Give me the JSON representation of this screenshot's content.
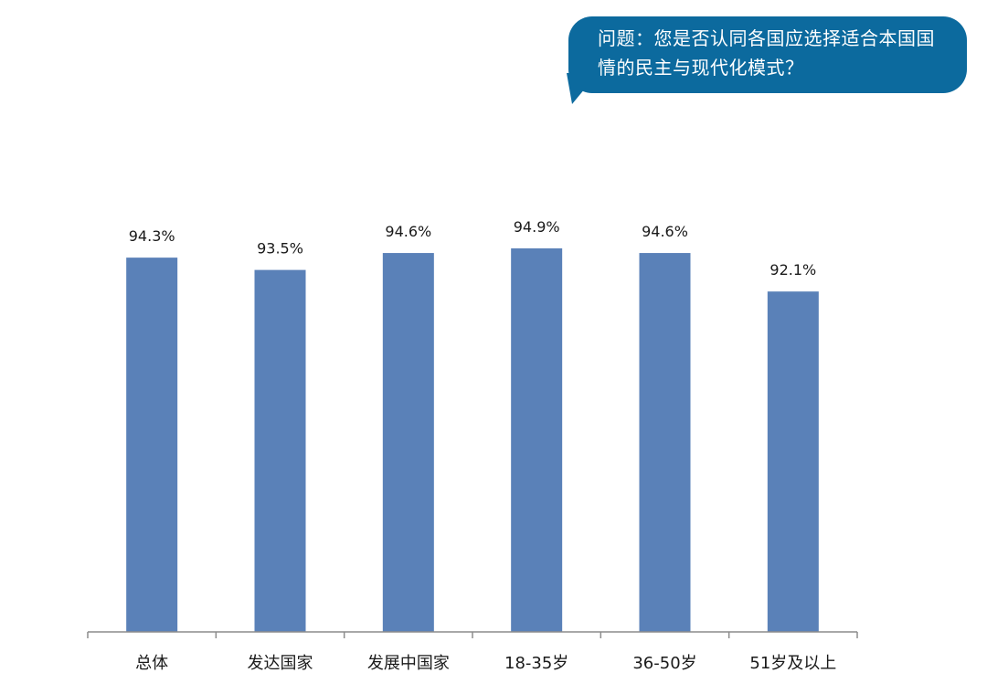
{
  "callout": {
    "text": "问题：您是否认同各国应选择适合本国国情的民主与现代化模式？",
    "background_color": "#0c6a9e",
    "text_color": "#ffffff"
  },
  "chart_data": {
    "type": "bar",
    "categories": [
      "总体",
      "发达国家",
      "发展中国家",
      "18-35岁",
      "36-50岁",
      "51岁及以上"
    ],
    "values": [
      94.3,
      93.5,
      94.6,
      94.9,
      94.6,
      92.1
    ],
    "data_labels": [
      "94.3%",
      "93.5%",
      "94.6%",
      "94.9%",
      "94.6%",
      "92.1%"
    ],
    "unit": "%",
    "bar_color": "#5a81b8",
    "axis_color": "#8c8c8c",
    "grid": false,
    "legend": "none",
    "title": "",
    "xlabel": "",
    "ylabel": ""
  }
}
